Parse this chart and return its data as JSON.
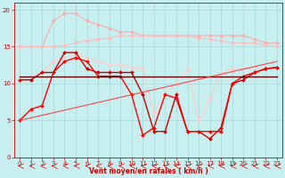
{
  "xlabel": "Vent moyen/en rafales ( km/h )",
  "xlim": [
    -0.5,
    23.5
  ],
  "ylim": [
    0,
    21
  ],
  "yticks": [
    0,
    5,
    10,
    15,
    20
  ],
  "xticks": [
    0,
    1,
    2,
    3,
    4,
    5,
    6,
    7,
    8,
    9,
    10,
    11,
    12,
    13,
    14,
    15,
    16,
    17,
    18,
    19,
    20,
    21,
    22,
    23
  ],
  "bg_color": "#c8efef",
  "grid_color": "#a8d8d8",
  "series": [
    {
      "label": "rafales_max",
      "color": "#ffaaaa",
      "lw": 0.8,
      "marker": "D",
      "markersize": 2.0,
      "x": [
        0,
        1,
        2,
        3,
        4,
        5,
        6,
        7,
        8,
        9,
        10,
        11,
        12,
        13,
        14,
        15,
        16,
        17,
        18,
        19,
        20,
        21,
        22,
        23
      ],
      "y": [
        15.0,
        15.0,
        15.0,
        18.5,
        19.5,
        19.5,
        18.5,
        18.0,
        17.5,
        17.0,
        17.0,
        16.5,
        16.5,
        16.5,
        16.5,
        16.5,
        16.5,
        16.5,
        16.5,
        16.5,
        16.5,
        16.0,
        15.5,
        15.5
      ]
    },
    {
      "label": "moy_smooth_high",
      "color": "#ffbbbb",
      "lw": 0.8,
      "marker": "D",
      "markersize": 2.0,
      "x": [
        0,
        1,
        2,
        3,
        4,
        5,
        6,
        7,
        8,
        9,
        10,
        11,
        12,
        13,
        14,
        15,
        16,
        17,
        18,
        19,
        20,
        21,
        22,
        23
      ],
      "y": [
        15.0,
        15.0,
        15.0,
        15.0,
        15.2,
        15.5,
        15.8,
        16.0,
        16.2,
        16.5,
        16.5,
        16.5,
        16.5,
        16.5,
        16.5,
        16.5,
        16.2,
        16.0,
        15.8,
        15.5,
        15.5,
        15.5,
        15.2,
        15.0
      ]
    },
    {
      "label": "interp_pink",
      "color": "#ffcccc",
      "lw": 0.8,
      "marker": "D",
      "markersize": 2.0,
      "x": [
        0,
        1,
        2,
        3,
        4,
        5,
        6,
        7,
        8,
        9,
        10,
        11,
        12,
        13,
        14,
        15,
        16,
        17,
        18,
        19,
        20,
        21,
        22,
        23
      ],
      "y": [
        10.5,
        11.0,
        11.5,
        13.0,
        13.5,
        14.0,
        13.5,
        13.0,
        12.5,
        12.5,
        12.2,
        12.0,
        6.0,
        8.5,
        10.0,
        12.0,
        5.0,
        8.0,
        11.5,
        12.0,
        12.0,
        12.0,
        12.0,
        12.0
      ]
    },
    {
      "label": "vent_moy_dark",
      "color": "#cc0000",
      "lw": 1.0,
      "marker": "D",
      "markersize": 2.0,
      "x": [
        0,
        1,
        2,
        3,
        4,
        5,
        6,
        7,
        8,
        9,
        10,
        11,
        12,
        13,
        14,
        15,
        16,
        17,
        18,
        19,
        20,
        21,
        22,
        23
      ],
      "y": [
        10.5,
        10.5,
        11.5,
        11.5,
        14.2,
        14.2,
        12.0,
        11.5,
        11.5,
        11.5,
        11.5,
        8.5,
        3.5,
        3.5,
        8.5,
        3.5,
        3.5,
        2.5,
        4.0,
        10.0,
        10.5,
        11.5,
        12.0,
        12.2
      ]
    },
    {
      "label": "vent_rafales_red",
      "color": "#ff0000",
      "lw": 1.0,
      "marker": "D",
      "markersize": 2.0,
      "x": [
        0,
        1,
        2,
        3,
        4,
        5,
        6,
        7,
        8,
        9,
        10,
        11,
        12,
        13,
        14,
        15,
        16,
        17,
        18,
        19,
        20,
        21,
        22,
        23
      ],
      "y": [
        5.0,
        6.5,
        7.0,
        11.5,
        13.0,
        13.5,
        13.0,
        11.0,
        11.0,
        11.0,
        8.5,
        3.0,
        4.0,
        8.5,
        8.0,
        3.5,
        3.5,
        3.5,
        3.5,
        10.0,
        11.0,
        11.5,
        12.0,
        12.2
      ]
    },
    {
      "label": "horizontal_dark",
      "color": "#660000",
      "lw": 1.0,
      "marker": null,
      "x": [
        0,
        23
      ],
      "y": [
        11.0,
        11.0
      ]
    },
    {
      "label": "diagonal_line",
      "color": "#ff4444",
      "lw": 0.8,
      "marker": null,
      "x": [
        0,
        23
      ],
      "y": [
        5.0,
        13.0
      ]
    }
  ],
  "arrow_color": "#dd0000",
  "arrow_angles": [
    180,
    180,
    180,
    180,
    180,
    180,
    180,
    180,
    180,
    180,
    180,
    175,
    170,
    165,
    165,
    170,
    175,
    180,
    180,
    180,
    180,
    180,
    180,
    180
  ]
}
